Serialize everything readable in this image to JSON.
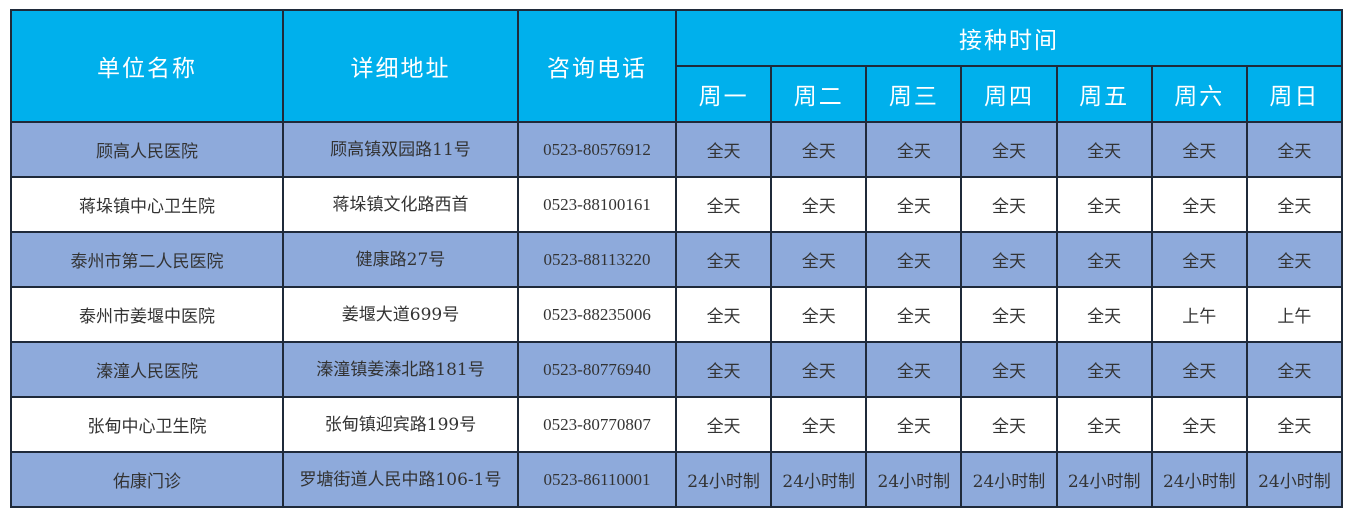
{
  "headers": {
    "name": "单位名称",
    "address": "详细地址",
    "phone": "咨询电话",
    "schedule": "接种时间",
    "days": [
      "周一",
      "周二",
      "周三",
      "周四",
      "周五",
      "周六",
      "周日"
    ]
  },
  "colors": {
    "header": "#00b0ec",
    "band": "#8eaadb"
  },
  "rows": [
    {
      "name": "顾高人民医院",
      "address": "顾高镇双园路11号",
      "phone": "0523-80576912",
      "days": [
        "全天",
        "全天",
        "全天",
        "全天",
        "全天",
        "全天",
        "全天"
      ]
    },
    {
      "name": "蒋垛镇中心卫生院",
      "address": "蒋垛镇文化路西首",
      "phone": "0523-88100161",
      "days": [
        "全天",
        "全天",
        "全天",
        "全天",
        "全天",
        "全天",
        "全天"
      ]
    },
    {
      "name": "泰州市第二人民医院",
      "address": "健康路27号",
      "phone": "0523-88113220",
      "days": [
        "全天",
        "全天",
        "全天",
        "全天",
        "全天",
        "全天",
        "全天"
      ]
    },
    {
      "name": "泰州市姜堰中医院",
      "address": "姜堰大道699号",
      "phone": "0523-88235006",
      "days": [
        "全天",
        "全天",
        "全天",
        "全天",
        "全天",
        "上午",
        "上午"
      ]
    },
    {
      "name": "溱潼人民医院",
      "address": "溱潼镇姜溱北路181号",
      "phone": "0523-80776940",
      "days": [
        "全天",
        "全天",
        "全天",
        "全天",
        "全天",
        "全天",
        "全天"
      ]
    },
    {
      "name": "张甸中心卫生院",
      "address": "张甸镇迎宾路199号",
      "phone": "0523-80770807",
      "days": [
        "全天",
        "全天",
        "全天",
        "全天",
        "全天",
        "全天",
        "全天"
      ]
    },
    {
      "name": "佑康门诊",
      "address": "罗塘街道人民中路106-1号",
      "phone": "0523-86110001",
      "days": [
        "24小时制",
        "24小时制",
        "24小时制",
        "24小时制",
        "24小时制",
        "24小时制",
        "24小时制"
      ]
    }
  ]
}
